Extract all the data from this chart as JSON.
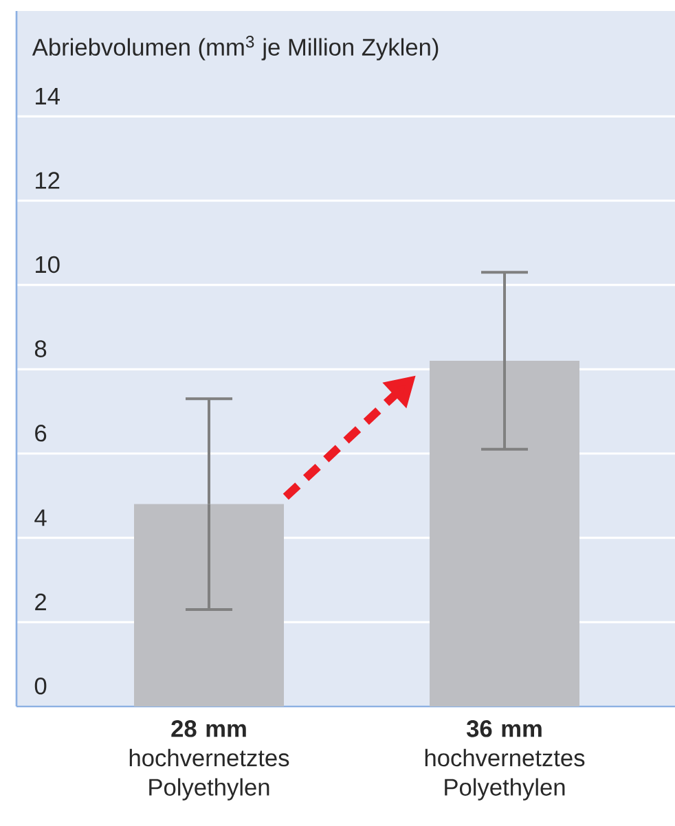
{
  "chart_data": {
    "type": "bar",
    "ylabel": "Abriebvolumen (mm$^{3}$ je Million Zyklen)",
    "categories": [
      "**28 mm** hochvernetztes Polyethylen",
      "**36 mm** hochvernetztes Polyethylen"
    ],
    "values": [
      4.8,
      8.2
    ],
    "errors": [
      2.5,
      2.1
    ],
    "color": "#bdbec2",
    "ylim": [
      0,
      16.5
    ],
    "yticks": [
      0,
      2,
      4,
      6,
      8,
      10,
      12,
      14
    ],
    "grid": "y"
  }
}
